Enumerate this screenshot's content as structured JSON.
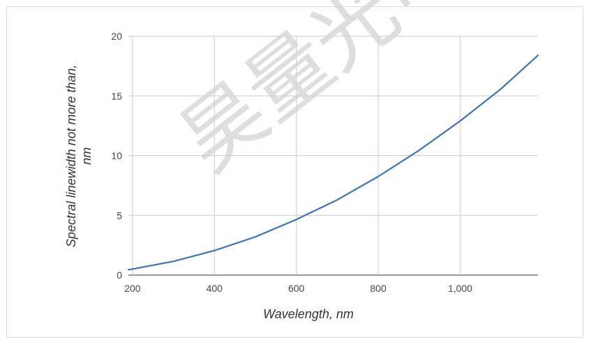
{
  "chart_data": {
    "type": "line",
    "title": "",
    "xlabel": "Wavelength, nm",
    "ylabel_line1": "Spectral linewidth not more than,",
    "ylabel_line2": "nm",
    "xlim": [
      190,
      1190
    ],
    "ylim": [
      0,
      20
    ],
    "x_ticks": [
      200,
      400,
      600,
      800,
      1000
    ],
    "x_tick_labels": [
      "200",
      "400",
      "600",
      "800",
      "1,000"
    ],
    "y_ticks": [
      0,
      5,
      10,
      15,
      20
    ],
    "y_tick_labels": [
      "0",
      "5",
      "10",
      "15",
      "20"
    ],
    "grid": true,
    "legend": "none",
    "series": [
      {
        "color": "#3a73b8",
        "x": [
          190,
          200,
          300,
          400,
          500,
          600,
          700,
          800,
          900,
          1000,
          1100,
          1190
        ],
        "y": [
          0.45,
          0.5,
          1.15,
          2.05,
          3.2,
          4.65,
          6.3,
          8.25,
          10.45,
          12.9,
          15.6,
          18.4
        ]
      }
    ]
  },
  "watermark": {
    "text": "昊量光电",
    "color": "#d3d3d3"
  }
}
